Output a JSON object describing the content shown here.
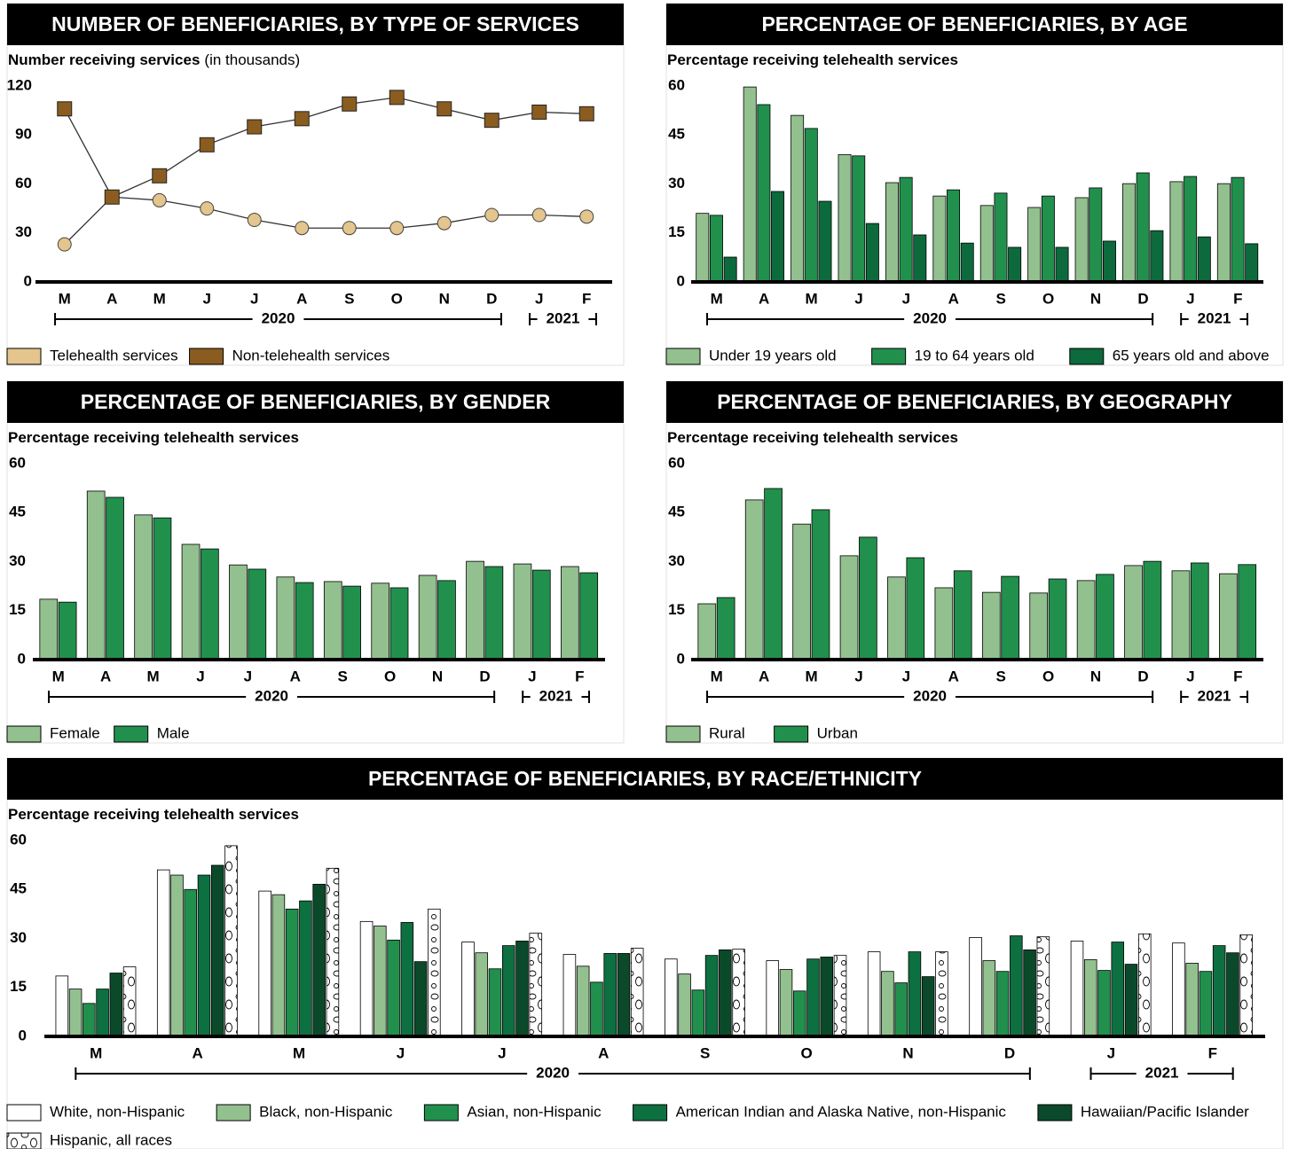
{
  "chart_data": [
    {
      "type": "line",
      "title": "NUMBER OF BENEFICIARIES, BY TYPE OF SERVICES",
      "ylabel": "Number receiving services",
      "ylabel_note": "(in thousands)",
      "categories": [
        "M",
        "A",
        "M",
        "J",
        "J",
        "A",
        "S",
        "O",
        "N",
        "D",
        "J",
        "F"
      ],
      "year_groups": [
        {
          "label": "2020",
          "count": 10
        },
        {
          "label": "2021",
          "count": 2
        }
      ],
      "ylim": [
        0,
        120
      ],
      "yticks": [
        0,
        30,
        60,
        90,
        120
      ],
      "series": [
        {
          "name": "Telehealth services",
          "color": "#e3c58d",
          "marker": "circle",
          "values": [
            23,
            52,
            50,
            45,
            38,
            33,
            33,
            33,
            36,
            41,
            41,
            40
          ]
        },
        {
          "name": "Non-telehealth services",
          "color": "#8a5c1f",
          "marker": "square",
          "values": [
            106,
            52,
            65,
            84,
            95,
            100,
            109,
            113,
            106,
            99,
            104,
            103
          ]
        }
      ]
    },
    {
      "type": "bar",
      "title": "PERCENTAGE OF BENEFICIARIES, BY AGE",
      "ylabel": "Percentage receiving telehealth services",
      "categories": [
        "M",
        "A",
        "M",
        "J",
        "J",
        "A",
        "S",
        "O",
        "N",
        "D",
        "J",
        "F"
      ],
      "year_groups": [
        {
          "label": "2020",
          "count": 10
        },
        {
          "label": "2021",
          "count": 2
        }
      ],
      "ylim": [
        0,
        60
      ],
      "yticks": [
        0,
        15,
        30,
        45,
        60
      ],
      "series": [
        {
          "name": "Under 19 years old",
          "color": "#93c08f",
          "values": [
            21,
            59.7,
            51,
            39,
            30.4,
            26.3,
            23.4,
            22.8,
            25.8,
            30.1,
            30.7,
            30.1
          ]
        },
        {
          "name": "19 to 64 years old",
          "color": "#21904d",
          "values": [
            20.4,
            54.3,
            47,
            38.6,
            32,
            28.2,
            27.2,
            26.3,
            28.8,
            33.4,
            32.3,
            32
          ]
        },
        {
          "name": "65 years old and above",
          "color": "#0d6a3c",
          "values": [
            7.6,
            27.7,
            24.7,
            17.9,
            14.4,
            11.9,
            10.6,
            10.6,
            12.5,
            15.7,
            13.8,
            11.7
          ]
        }
      ]
    },
    {
      "type": "bar",
      "title": "PERCENTAGE OF BENEFICIARIES, BY GENDER",
      "ylabel": "Percentage receiving telehealth services",
      "categories": [
        "M",
        "A",
        "M",
        "J",
        "J",
        "A",
        "S",
        "O",
        "N",
        "D",
        "J",
        "F"
      ],
      "year_groups": [
        {
          "label": "2020",
          "count": 10
        },
        {
          "label": "2021",
          "count": 2
        }
      ],
      "ylim": [
        0,
        60
      ],
      "yticks": [
        0,
        15,
        30,
        45,
        60
      ],
      "series": [
        {
          "name": "Female",
          "color": "#93c08f",
          "values": [
            18.5,
            51.6,
            44.3,
            35.3,
            29,
            25.3,
            23.9,
            23.4,
            25.8,
            30.1,
            29.3,
            28.5
          ]
        },
        {
          "name": "Male",
          "color": "#21904d",
          "values": [
            17.6,
            49.7,
            43.4,
            33.9,
            27.7,
            23.6,
            22.5,
            22,
            24.2,
            28.5,
            27.4,
            26.6
          ]
        }
      ]
    },
    {
      "type": "bar",
      "title": "PERCENTAGE OF BENEFICIARIES, BY GEOGRAPHY",
      "ylabel": "Percentage receiving telehealth services",
      "categories": [
        "M",
        "A",
        "M",
        "J",
        "J",
        "A",
        "S",
        "O",
        "N",
        "D",
        "J",
        "F"
      ],
      "year_groups": [
        {
          "label": "2020",
          "count": 10
        },
        {
          "label": "2021",
          "count": 2
        }
      ],
      "ylim": [
        0,
        60
      ],
      "yticks": [
        0,
        15,
        30,
        45,
        60
      ],
      "series": [
        {
          "name": "Rural",
          "color": "#93c08f",
          "values": [
            17.1,
            48.9,
            41.5,
            31.8,
            25.3,
            22,
            20.6,
            20.4,
            24.2,
            28.8,
            27.2,
            26.3
          ]
        },
        {
          "name": "Urban",
          "color": "#21904d",
          "values": [
            19,
            52.4,
            45.9,
            37.5,
            31.2,
            27.2,
            25.5,
            24.7,
            26.1,
            30.1,
            29.6,
            29.1
          ]
        }
      ]
    },
    {
      "type": "bar",
      "title": "PERCENTAGE OF BENEFICIARIES, BY RACE/ETHNICITY",
      "ylabel": "Percentage receiving telehealth services",
      "categories": [
        "M",
        "A",
        "M",
        "J",
        "J",
        "A",
        "S",
        "O",
        "N",
        "D",
        "J",
        "F"
      ],
      "year_groups": [
        {
          "label": "2020",
          "count": 10
        },
        {
          "label": "2021",
          "count": 2
        }
      ],
      "ylim": [
        0,
        60
      ],
      "yticks": [
        0,
        15,
        30,
        45,
        60
      ],
      "series": [
        {
          "name": "White, non-Hispanic",
          "color": "#ffffff",
          "values": [
            18.5,
            51,
            44.5,
            35.2,
            28.9,
            25.1,
            23.7,
            23.2,
            25.9,
            30.3,
            29.2,
            28.6
          ]
        },
        {
          "name": "Black, non-Hispanic",
          "color": "#93c08f",
          "values": [
            14.5,
            49.4,
            43.4,
            33.8,
            25.6,
            21.5,
            19.1,
            20.5,
            19.9,
            23.2,
            23.5,
            22.4
          ]
        },
        {
          "name": "Asian, non-Hispanic",
          "color": "#21904d",
          "values": [
            10.1,
            45,
            39,
            29.5,
            20.7,
            16.6,
            14.2,
            13.9,
            16.4,
            19.9,
            20.2,
            19.9
          ]
        },
        {
          "name": "American Indian and Alaska Native, non-Hispanic",
          "color": "#0d7040",
          "values": [
            14.5,
            49.4,
            41.5,
            34.9,
            27.8,
            25.4,
            24.8,
            23.7,
            25.9,
            30.8,
            28.9,
            27.8
          ]
        },
        {
          "name": "Hawaiian/Pacific Islander",
          "color": "#0a4a2a",
          "values": [
            19.4,
            52.4,
            46.6,
            22.9,
            29.2,
            25.4,
            26.5,
            24.3,
            18.3,
            26.5,
            22.1,
            25.6
          ]
        },
        {
          "name": "Hispanic, all races",
          "color": "#ffffff",
          "pattern": "blobs",
          "values": [
            21.3,
            58.4,
            51.5,
            39,
            31.6,
            27,
            26.7,
            24.8,
            25.9,
            30.5,
            31.4,
            31.1
          ]
        }
      ]
    }
  ]
}
